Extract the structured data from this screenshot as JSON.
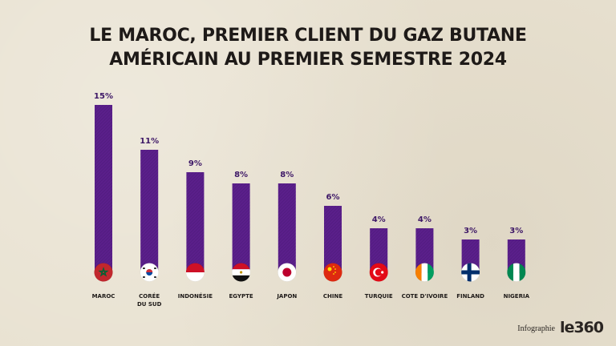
{
  "title_line1": "LE MAROC, PREMIER CLIENT DU GAZ BUTANE",
  "title_line2": "AMÉRICAIN AU PREMIER SEMESTRE 2024",
  "footer": {
    "credit": "Infographie",
    "logo": "le360"
  },
  "colors": {
    "bar": "#5a1f8a",
    "bar_dark": "#3f146b",
    "label": "#3d1766",
    "text": "#1e1a18"
  },
  "chart_data": {
    "type": "bar",
    "categories": [
      "MAROC",
      "CORÉE DU SUD",
      "INDONÉSIE",
      "EGYPTE",
      "JAPON",
      "CHINE",
      "TURQUIE",
      "COTE D'IVOIRE",
      "FINLAND",
      "NIGERIA"
    ],
    "category_lines": [
      [
        "MAROC"
      ],
      [
        "CORÉE",
        "DU SUD"
      ],
      [
        "INDONÉSIE"
      ],
      [
        "EGYPTE"
      ],
      [
        "JAPON"
      ],
      [
        "CHINE"
      ],
      [
        "TURQUIE"
      ],
      [
        "COTE D'IVOIRE"
      ],
      [
        "FINLAND"
      ],
      [
        "NIGERIA"
      ]
    ],
    "values": [
      15,
      11,
      9,
      8,
      8,
      6,
      4,
      4,
      3,
      3
    ],
    "labels": [
      "15%",
      "11%",
      "9%",
      "8%",
      "8%",
      "6%",
      "4%",
      "4%",
      "3%",
      "3%"
    ],
    "flags": [
      "morocco-flag",
      "south-korea-flag",
      "indonesia-flag",
      "egypt-flag",
      "japan-flag",
      "china-flag",
      "turkey-flag",
      "ivory-coast-flag",
      "finland-flag",
      "nigeria-flag"
    ],
    "unit": "%",
    "ylim": [
      0,
      15
    ]
  }
}
